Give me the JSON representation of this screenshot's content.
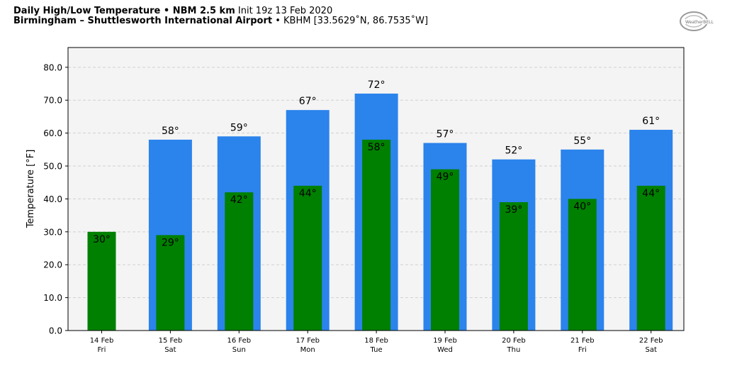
{
  "header": {
    "line1_bold": "Daily High/Low Temperature • NBM 2.5 km",
    "line1_rest": "Init 19z 13 Feb 2020",
    "line2_bold": "Birmingham – Shuttlesworth International Airport",
    "line2_rest": "• KBHM [33.5629˚N, 86.7535˚W]"
  },
  "logo": {
    "text": "WeatherBELL"
  },
  "colors": {
    "high": "#2b83ec",
    "low": "#008000",
    "plot_bg": "#f4f4f4"
  },
  "chart_data": {
    "type": "bar",
    "ylabel": "Temperature [°F]",
    "ylim": [
      0,
      86
    ],
    "yticks": [
      0,
      10,
      20,
      30,
      40,
      50,
      60,
      70,
      80
    ],
    "ytick_labels": [
      "0.0",
      "10.0",
      "20.0",
      "30.0",
      "40.0",
      "50.0",
      "60.0",
      "70.0",
      "80.0"
    ],
    "grid": true,
    "categories": [
      "14 Feb",
      "15 Feb",
      "16 Feb",
      "17 Feb",
      "18 Feb",
      "19 Feb",
      "20 Feb",
      "21 Feb",
      "22 Feb"
    ],
    "weekdays": [
      "Fri",
      "Sat",
      "Sun",
      "Mon",
      "Tue",
      "Wed",
      "Thu",
      "Fri",
      "Sat"
    ],
    "series": [
      {
        "key": "high",
        "values": [
          null,
          58,
          59,
          67,
          72,
          57,
          52,
          55,
          61
        ],
        "labels": [
          "",
          "58°",
          "59°",
          "67°",
          "72°",
          "57°",
          "52°",
          "55°",
          "61°"
        ]
      },
      {
        "key": "low",
        "values": [
          30,
          29,
          42,
          44,
          58,
          49,
          39,
          40,
          44
        ],
        "labels": [
          "30°",
          "29°",
          "42°",
          "44°",
          "58°",
          "49°",
          "39°",
          "40°",
          "44°"
        ]
      }
    ]
  }
}
